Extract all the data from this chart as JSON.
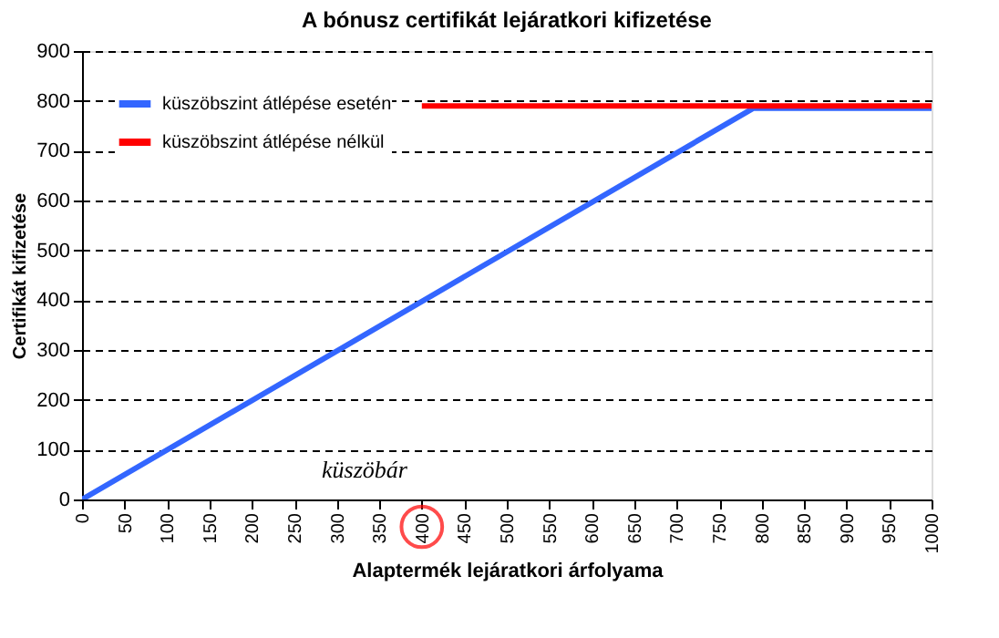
{
  "chart_data": {
    "type": "line",
    "title": "A bónusz certifikát lejáratkori kifizetése",
    "xlabel": "Alaptermék lejáratkori árfolyama",
    "ylabel": "Certifikát kifizetése",
    "series": [
      {
        "name": "küszöbszint átlépése esetén",
        "color": "#3366ff",
        "x": [
          0,
          790,
          1000
        ],
        "values": [
          0,
          785,
          785
        ]
      },
      {
        "name": "küszöbszint átlépése nélkül",
        "color": "#ff0000",
        "x": [
          400,
          1000
        ],
        "values": [
          790,
          790
        ]
      }
    ],
    "xlim": [
      0,
      1000
    ],
    "xticks": [
      0,
      50,
      100,
      150,
      200,
      250,
      300,
      350,
      400,
      450,
      500,
      550,
      600,
      650,
      700,
      750,
      800,
      850,
      900,
      950,
      1000
    ],
    "ylim": [
      0,
      900
    ],
    "yticks": [
      0,
      100,
      200,
      300,
      400,
      500,
      600,
      700,
      800,
      900
    ],
    "grid": "y",
    "legend": "top left",
    "marker": "none",
    "line_style": "solid",
    "annotations": [
      "küszöbár"
    ]
  }
}
